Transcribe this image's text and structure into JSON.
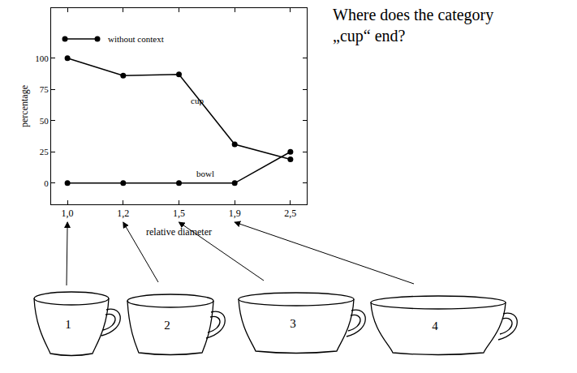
{
  "chart_data": {
    "type": "line",
    "title": "Where does the category „cup“ end?",
    "x_label": "relative diameter",
    "y_label": "percentage",
    "categories": [
      "1,0",
      "1,2",
      "1,5",
      "1,9",
      "2,5"
    ],
    "series": [
      {
        "name": "cup",
        "color": "#000000",
        "values": [
          100,
          86,
          87,
          31,
          19
        ]
      },
      {
        "name": "bowl",
        "color": "#000000",
        "values": [
          0,
          0,
          0,
          0,
          25
        ]
      }
    ],
    "ylim": [
      -17,
      140
    ],
    "yticks": [
      0,
      25,
      50,
      75,
      100
    ],
    "grid": false,
    "legend": "upper left",
    "legend_label": "without context",
    "marker": "circle"
  },
  "illustration": {
    "cups": [
      {
        "label": "1",
        "points_to": "1,0"
      },
      {
        "label": "2",
        "points_to": "1,2"
      },
      {
        "label": "3",
        "points_to": "1,5"
      },
      {
        "label": "4",
        "points_to": "1,9"
      }
    ]
  }
}
